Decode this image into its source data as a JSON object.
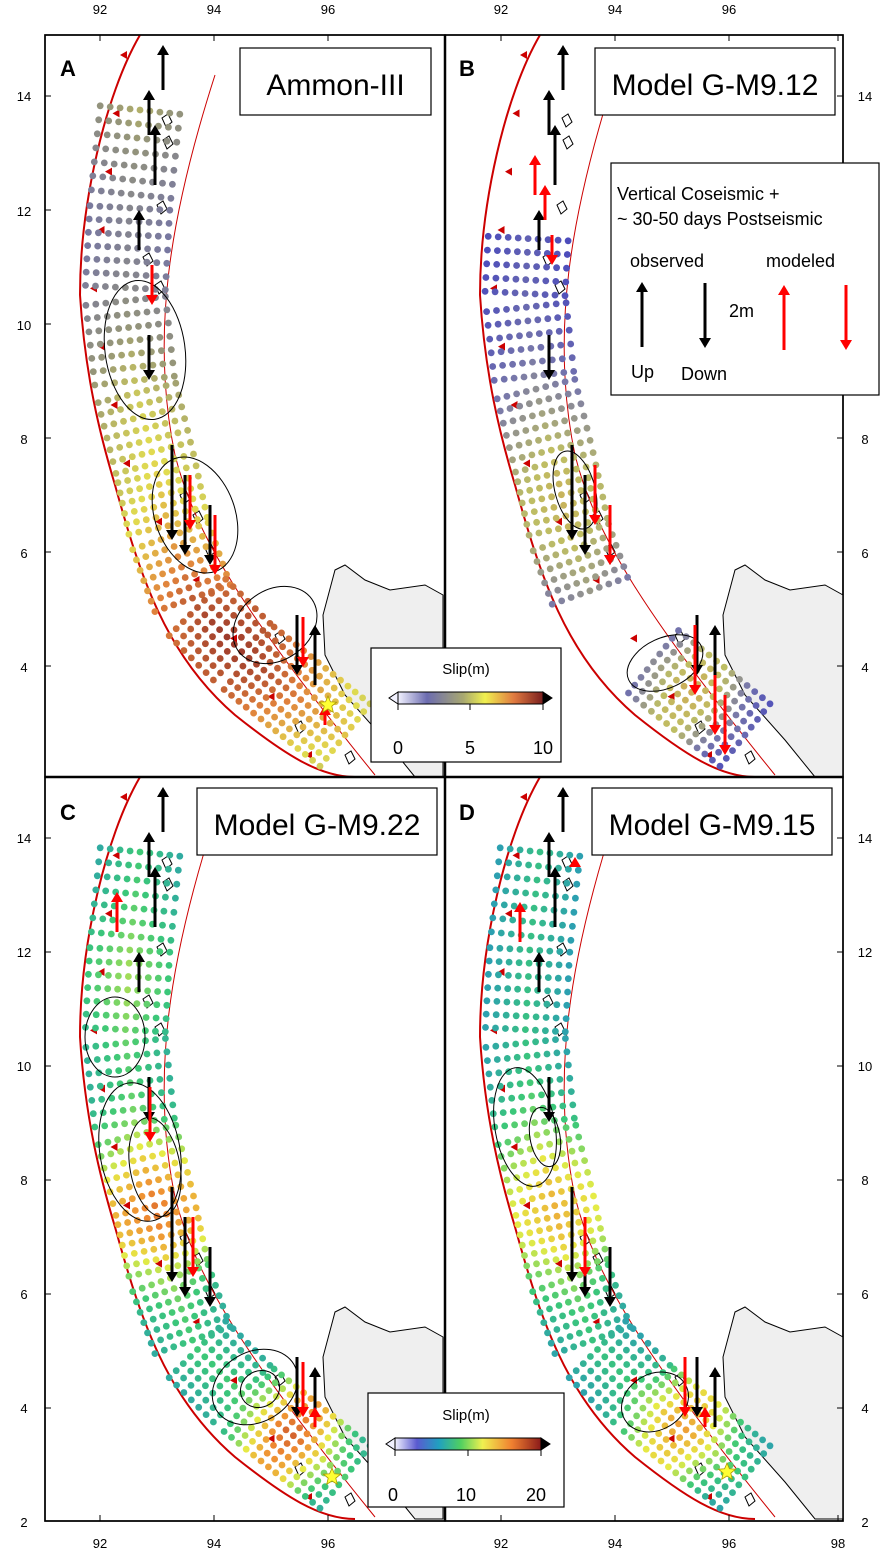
{
  "figure": {
    "top_lon_ticks": [
      "92",
      "94",
      "96"
    ],
    "bottom_lon_ticks": [
      "92",
      "94",
      "96",
      "92",
      "94",
      "96",
      "98"
    ],
    "lat_ticks": [
      "14",
      "12",
      "10",
      "8",
      "6",
      "4"
    ],
    "lower_lat_ticks": [
      "14",
      "12",
      "10",
      "8",
      "6",
      "4",
      "2"
    ]
  },
  "panels": [
    {
      "letter": "A",
      "title": "Ammon-III"
    },
    {
      "letter": "B",
      "title": "Model G-M9.12"
    },
    {
      "letter": "C",
      "title": "Model G-M9.22"
    },
    {
      "letter": "D",
      "title": "Model G-M9.15"
    }
  ],
  "legend": {
    "heading_line1": "Vertical Coseismic +",
    "heading_line2": "~ 30-50 days Postseismic",
    "observed": "observed",
    "modeled": "modeled",
    "scale": "2m",
    "up": "Up",
    "down": "Down",
    "colors": {
      "observed": "#000000",
      "modeled": "#ff0000"
    }
  },
  "colorbars": [
    {
      "title": "Slip(m)",
      "ticks": [
        "0",
        "5",
        "10"
      ],
      "palette": "polar-yellow-red"
    },
    {
      "title": "Slip(m)",
      "ticks": [
        "0",
        "10",
        "20"
      ],
      "palette": "rainbow"
    }
  ],
  "colors": {
    "trench": "#cc0000",
    "land": "#efefef",
    "epicenter": "#ffff33"
  }
}
